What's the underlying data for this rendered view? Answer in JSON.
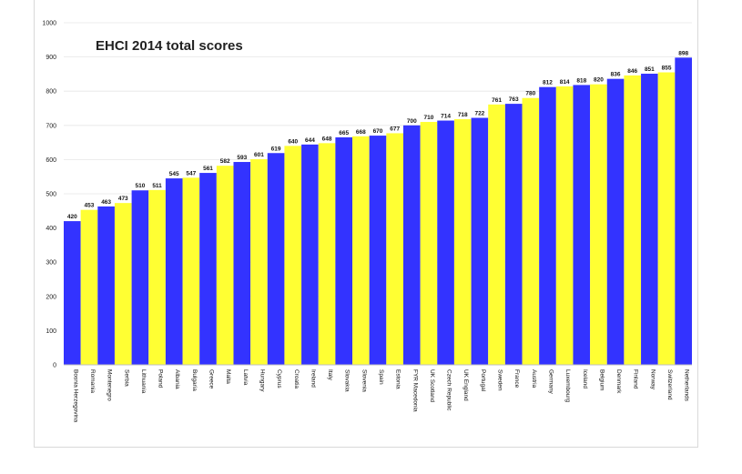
{
  "chart_data": {
    "type": "bar",
    "title": "EHCI 2014 total scores",
    "xlabel": "",
    "ylabel": "",
    "ylim": [
      0,
      1000
    ],
    "yticks": [
      0,
      100,
      200,
      300,
      400,
      500,
      600,
      700,
      800,
      900,
      1000
    ],
    "grid": true,
    "legend": "none",
    "colors": [
      "#3333ff",
      "#ffff33"
    ],
    "categories": [
      "Bosnia Herzegovina",
      "Romania",
      "Montenegro",
      "Serbia",
      "Lithuania",
      "Poland",
      "Albania",
      "Bulgaria",
      "Greece",
      "Malta",
      "Latvia",
      "Hungary",
      "Cyprus",
      "Croatia",
      "Ireland",
      "Italy",
      "Slovakia",
      "Slovenia",
      "Spain",
      "Estonia",
      "FYR Macedonia",
      "UK Scotland",
      "Czech Republic",
      "UK England",
      "Portugal",
      "Sweden",
      "France",
      "Austria",
      "Germany",
      "Luxembourg",
      "Iceland",
      "Belgium",
      "Denmark",
      "Finland",
      "Norway",
      "Switzerland",
      "Netherlands"
    ],
    "values": [
      420,
      453,
      463,
      473,
      510,
      511,
      545,
      547,
      561,
      582,
      593,
      601,
      619,
      640,
      644,
      648,
      665,
      668,
      670,
      677,
      700,
      710,
      714,
      718,
      722,
      761,
      763,
      780,
      812,
      814,
      818,
      820,
      836,
      846,
      851,
      855,
      898
    ],
    "value_labels": [
      "420",
      "453",
      "463",
      "473",
      "510",
      "511",
      "545",
      "547",
      "561",
      "582",
      "593",
      "601",
      "619",
      "640",
      "644",
      "648",
      "665",
      "668",
      "670",
      "677",
      "700",
      "710",
      "714",
      "718",
      "722",
      "761",
      "763",
      "780",
      "812",
      "814",
      "818",
      "820",
      "836",
      "846",
      "851",
      "855",
      "898"
    ]
  }
}
